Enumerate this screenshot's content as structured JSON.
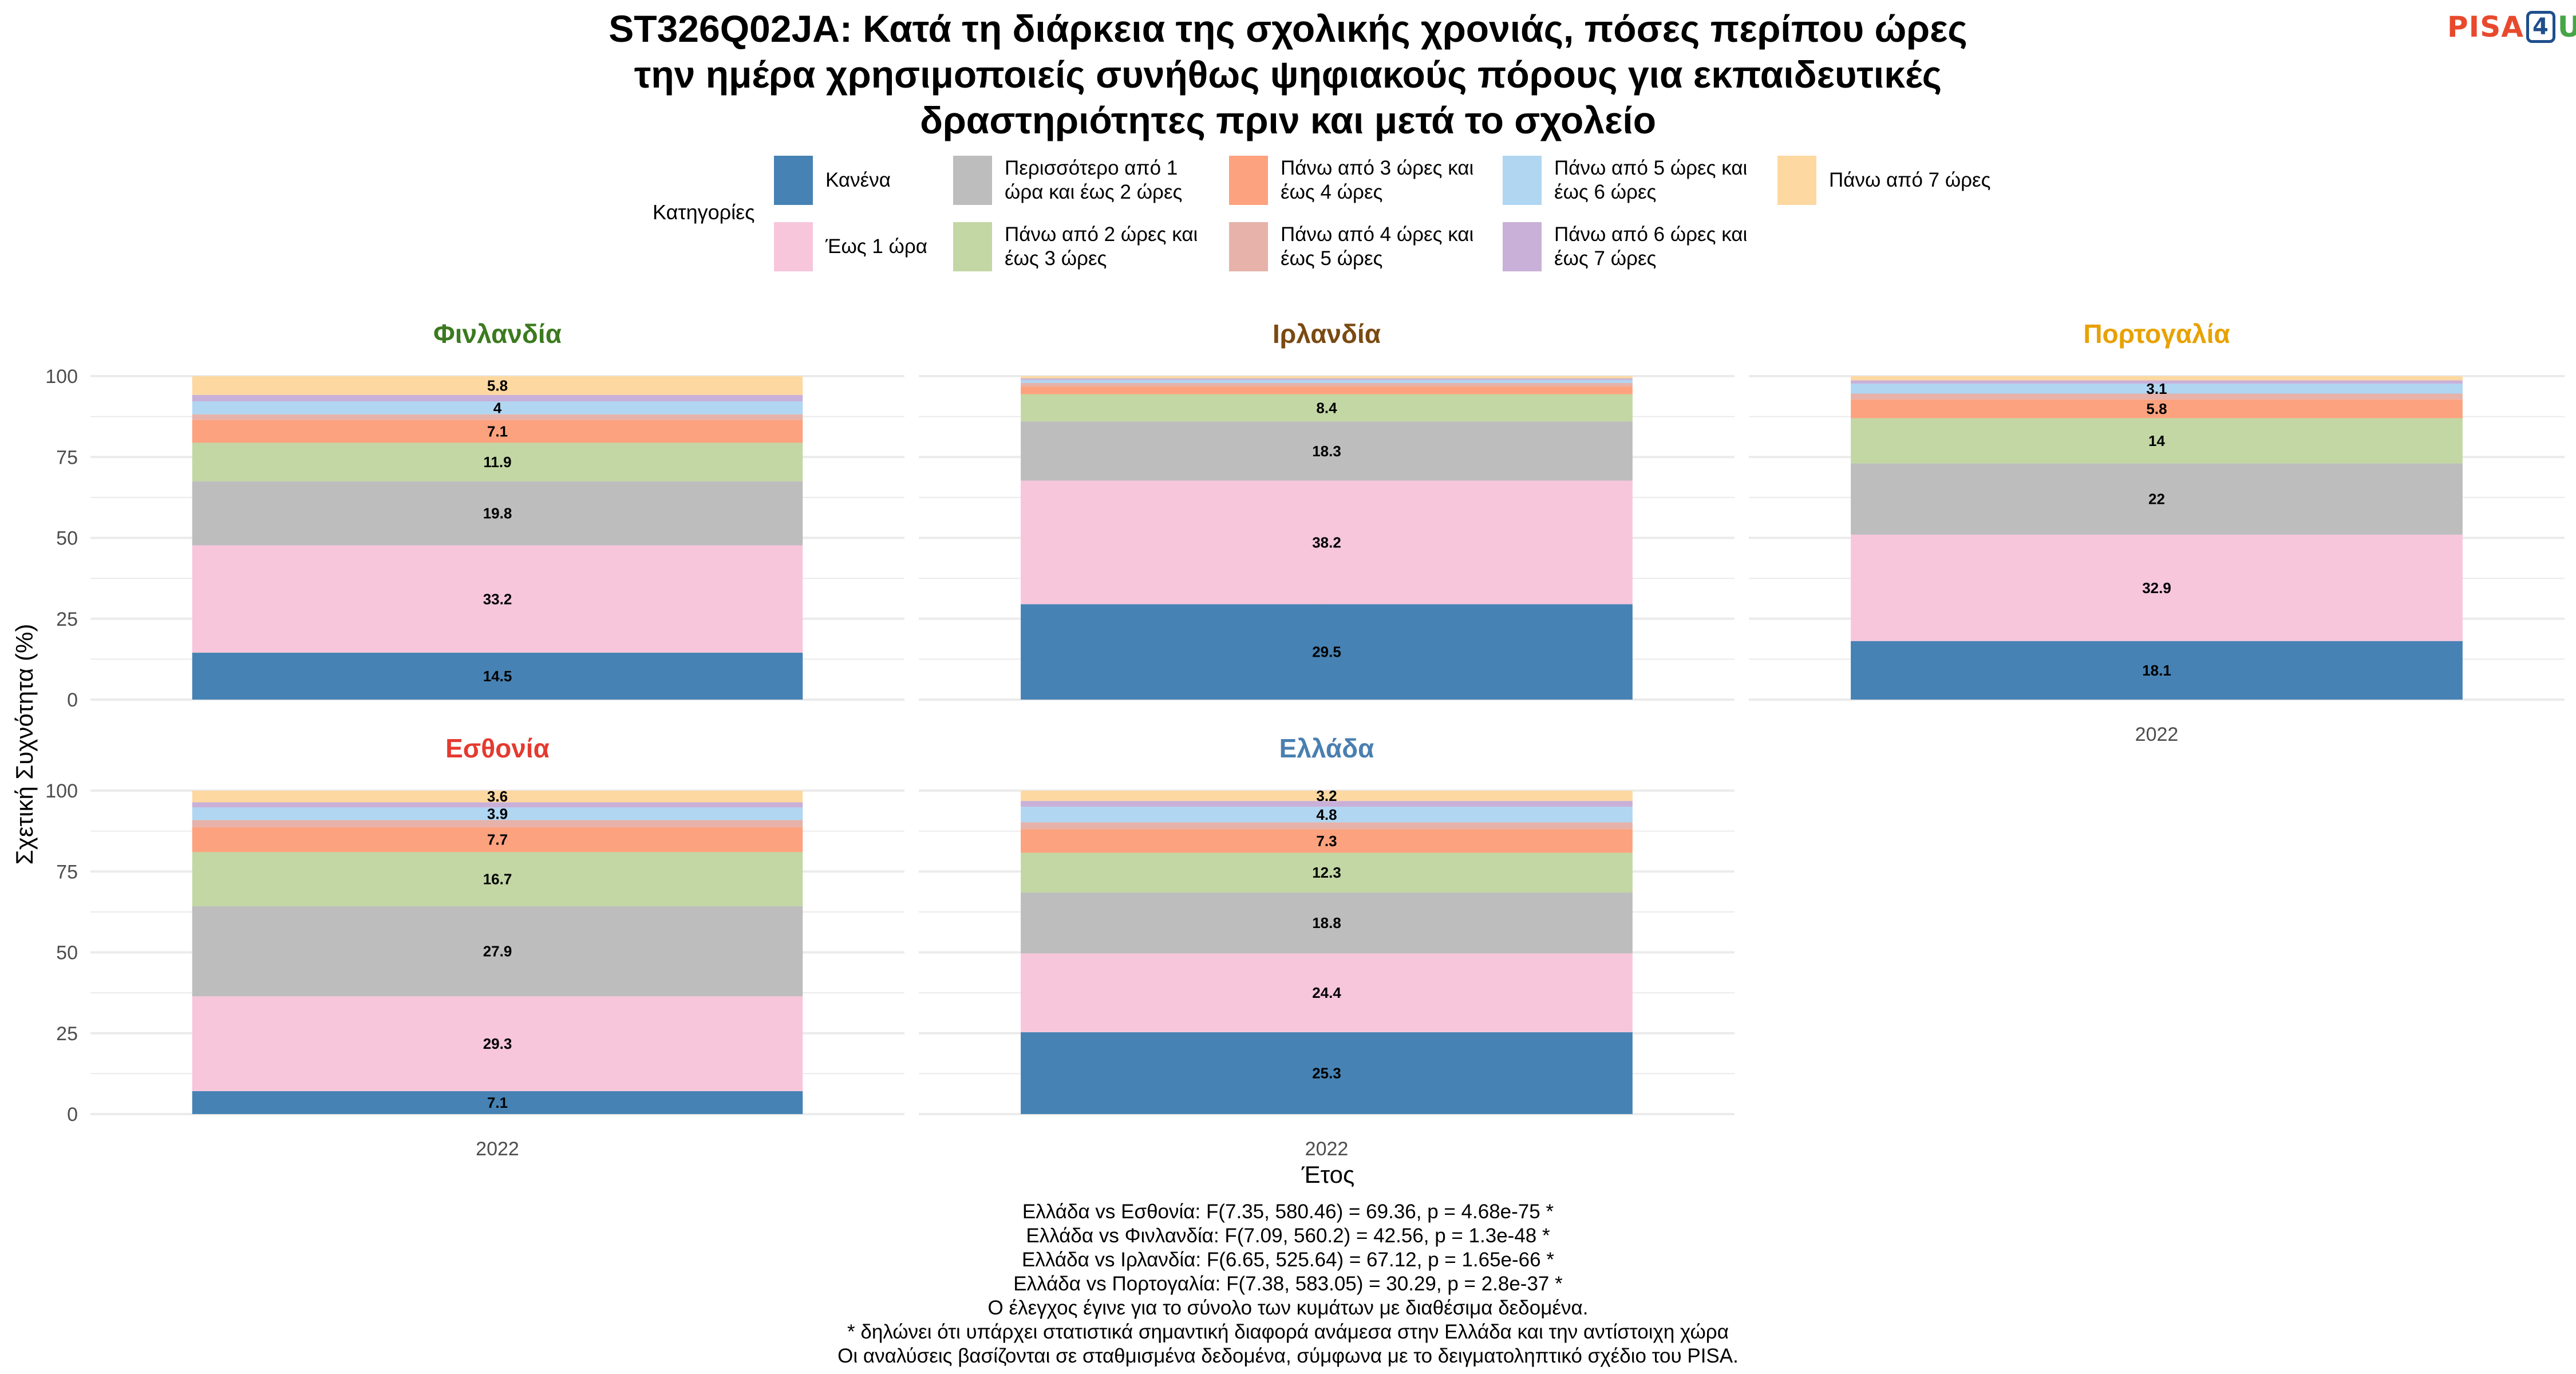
{
  "title_lines": [
    "ST326Q02JA: Κατά τη διάρκεια της σχολικής χρονιάς, πόσες περίπου ώρες",
    "την ημέρα χρησιμοποιείς συνήθως ψηφιακούς πόρους για εκπαιδευτικές",
    "δραστηριότητες πριν και μετά το σχολείο"
  ],
  "logo": {
    "text_left": "PISA",
    "text_box": "4",
    "text_right": "U"
  },
  "legend_title": "Κατηγορίες",
  "colors": {
    "categories": [
      "#4682b4",
      "#f7c6db",
      "#bdbdbd",
      "#c3d7a4",
      "#fca27e",
      "#e6b2a9",
      "#b0d6f2",
      "#c9b0d8",
      "#fdd8a0"
    ],
    "panel_titles": [
      "#3b7a1e",
      "#7a4a12",
      "#e8a100",
      "#e53a2f",
      "#4a7fb0"
    ],
    "grid": "#ebebeb",
    "axis_text": "#4d4d4d"
  },
  "chart_data": {
    "type": "bar",
    "stacked": true,
    "ylabel": "Σχετική Συχνότητα (%)",
    "xlabel": "Έτος",
    "ylim": [
      0,
      100
    ],
    "yticks": [
      0,
      25,
      50,
      75,
      100
    ],
    "categories": [
      "Κανένα",
      "Έως 1 ώρα",
      "Περισσότερο από 1\nώρα και έως 2 ώρες",
      "Πάνω από 2 ώρες και\nέως 3 ώρες",
      "Πάνω από 3 ώρες και\nέως 4 ώρες",
      "Πάνω από 4 ώρες και\nέως 5 ώρες",
      "Πάνω από 5 ώρες και\nέως 6 ώρες",
      "Πάνω από 6 ώρες και\nέως 7 ώρες",
      "Πάνω από 7 ώρες"
    ],
    "panels": [
      {
        "country": "Φινλανδία",
        "year": "2022",
        "values": [
          14.5,
          33.2,
          19.8,
          11.9,
          7.1,
          1.7,
          4.0,
          2.0,
          5.8
        ],
        "labels": [
          "14.5",
          "33.2",
          "19.8",
          "11.9",
          "7.1",
          "",
          "4",
          "",
          "5.8"
        ]
      },
      {
        "country": "Ιρλανδία",
        "year": "2022",
        "values": [
          29.5,
          38.2,
          18.3,
          8.4,
          2.4,
          1.1,
          0.9,
          0.5,
          0.7
        ],
        "labels": [
          "29.5",
          "38.2",
          "18.3",
          "8.4",
          "",
          "",
          "",
          "",
          ""
        ]
      },
      {
        "country": "Πορτογαλία",
        "year": "2022",
        "values": [
          18.1,
          32.9,
          22.0,
          14.0,
          5.8,
          1.8,
          3.1,
          1.0,
          1.3
        ],
        "labels": [
          "18.1",
          "32.9",
          "22",
          "14",
          "5.8",
          "",
          "3.1",
          "",
          ""
        ]
      },
      {
        "country": "Εσθονία",
        "year": "2022",
        "values": [
          7.1,
          29.3,
          27.9,
          16.7,
          7.7,
          2.2,
          3.9,
          1.6,
          3.6
        ],
        "labels": [
          "7.1",
          "29.3",
          "27.9",
          "16.7",
          "7.7",
          "",
          "3.9",
          "",
          "3.6"
        ]
      },
      {
        "country": "Ελλάδα",
        "year": "2022",
        "values": [
          25.3,
          24.4,
          18.8,
          12.3,
          7.3,
          2.1,
          4.8,
          1.8,
          3.2
        ],
        "labels": [
          "25.3",
          "24.4",
          "18.8",
          "12.3",
          "7.3",
          "",
          "4.8",
          "",
          "3.2"
        ]
      }
    ]
  },
  "notes": [
    "Ελλάδα vs Εσθονία: F(7.35, 580.46) = 69.36, p = 4.68e-75 *",
    "Ελλάδα vs Φινλανδία: F(7.09, 560.2) = 42.56, p = 1.3e-48 *",
    "Ελλάδα vs Ιρλανδία: F(6.65, 525.64) = 67.12, p = 1.65e-66 *",
    "Ελλάδα vs Πορτογαλία: F(7.38, 583.05) = 30.29, p = 2.8e-37 *",
    "Ο έλεγχος έγινε για το σύνολο των κυμάτων με διαθέσιμα δεδομένα.",
    "* δηλώνει ότι υπάρχει στατιστικά σημαντική διαφορά ανάμεσα στην Ελλάδα και την αντίστοιχη χώρα",
    "Οι αναλύσεις βασίζονται σε σταθμισμένα δεδομένα, σύμφωνα με το δειγματοληπτικό σχέδιο του PISA."
  ]
}
